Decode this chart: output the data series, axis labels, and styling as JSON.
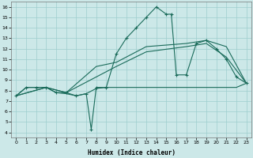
{
  "bg_color": "#cce8e8",
  "line_color": "#1a6b5a",
  "grid_color": "#9ecece",
  "xlabel": "Humidex (Indice chaleur)",
  "xlim": [
    -0.5,
    23.5
  ],
  "ylim": [
    3.5,
    16.5
  ],
  "xticks": [
    0,
    1,
    2,
    3,
    4,
    5,
    6,
    7,
    8,
    9,
    10,
    11,
    12,
    13,
    14,
    15,
    16,
    17,
    18,
    19,
    20,
    21,
    22,
    23
  ],
  "yticks": [
    4,
    5,
    6,
    7,
    8,
    9,
    10,
    11,
    12,
    13,
    14,
    15,
    16
  ],
  "line_jagged_x": [
    0,
    1,
    2,
    3,
    4,
    5,
    6,
    7,
    7.5,
    8,
    9,
    10,
    11,
    12,
    13,
    14,
    15,
    15.5,
    16,
    17,
    18,
    19,
    20,
    21,
    22,
    23
  ],
  "line_jagged_y": [
    7.5,
    8.3,
    8.3,
    8.3,
    7.8,
    7.8,
    7.5,
    7.7,
    4.3,
    8.3,
    8.3,
    11.5,
    13.0,
    14.0,
    15.0,
    16.0,
    15.3,
    15.3,
    9.5,
    9.5,
    12.5,
    12.8,
    12.0,
    11.0,
    9.3,
    8.7
  ],
  "line_flat_x": [
    0,
    1,
    2,
    3,
    4,
    5,
    6,
    7,
    8,
    9,
    10,
    11,
    12,
    13,
    14,
    15,
    16,
    17,
    18,
    19,
    20,
    21,
    22,
    23
  ],
  "line_flat_y": [
    7.5,
    8.3,
    8.3,
    8.3,
    7.8,
    7.7,
    7.5,
    7.7,
    8.2,
    8.3,
    8.3,
    8.3,
    8.3,
    8.3,
    8.3,
    8.3,
    8.3,
    8.3,
    8.3,
    8.3,
    8.3,
    8.3,
    8.3,
    8.7
  ],
  "line_trend1_x": [
    0,
    3,
    5,
    8,
    10,
    13,
    17,
    19,
    21,
    23
  ],
  "line_trend1_y": [
    7.5,
    8.3,
    7.8,
    9.3,
    10.3,
    11.7,
    12.2,
    12.5,
    11.2,
    8.7
  ],
  "line_trend2_x": [
    0,
    3,
    5,
    8,
    10,
    13,
    17,
    19,
    21,
    23
  ],
  "line_trend2_y": [
    7.5,
    8.3,
    7.8,
    10.3,
    10.7,
    12.2,
    12.5,
    12.8,
    12.2,
    8.7
  ]
}
